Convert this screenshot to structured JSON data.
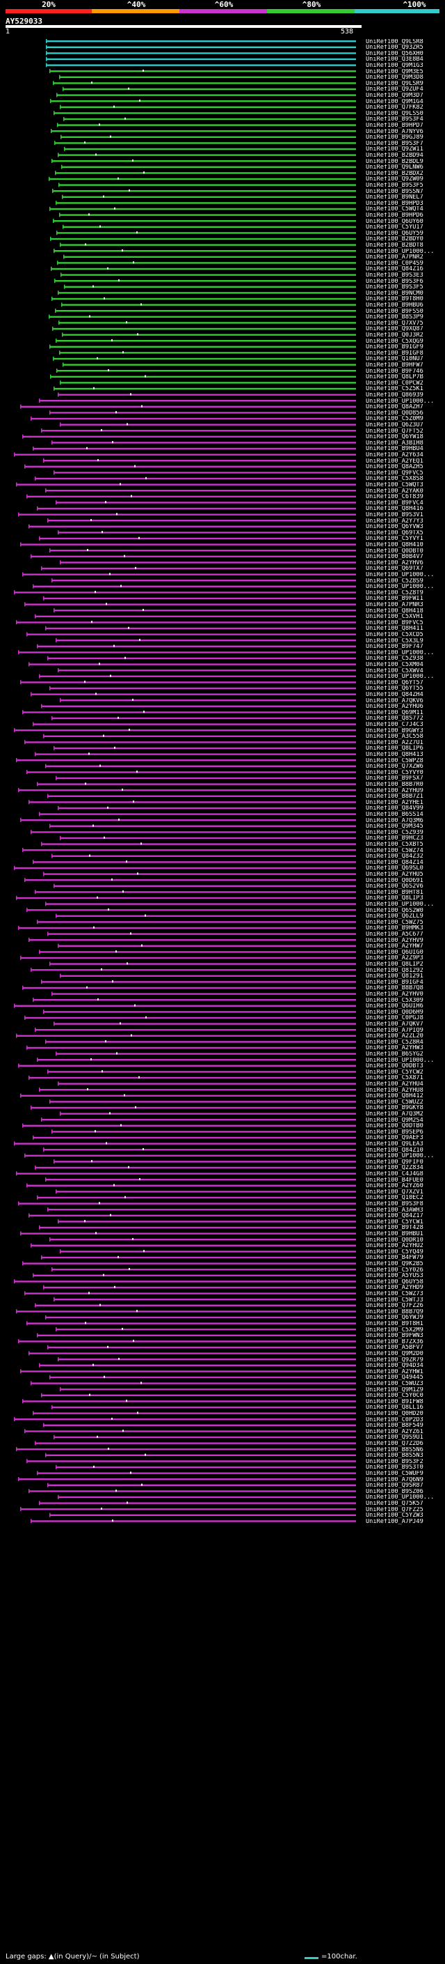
{
  "colors": {
    "red": "#ff2020",
    "orange": "#ff9900",
    "purple": "#cc33cc",
    "green": "#33cc33",
    "cyan": "#33cccc",
    "black": "#000000",
    "white": "#ffffff"
  },
  "scale": {
    "labels": [
      "20%",
      "^40%",
      "^60%",
      "^80%",
      "^100%"
    ],
    "segments": [
      "red",
      "orange",
      "purple",
      "green",
      "cyan"
    ]
  },
  "query": {
    "title": "AY529033",
    "start": "1",
    "end": "538"
  },
  "legend": {
    "gaps_text": "Large gaps: ▲(in Query)/~ (in Subject)",
    "scale_text": "=100char."
  },
  "hits": [
    {
      "id": "UniRef100_Q9LSR8",
      "color": "cyan"
    },
    {
      "id": "UniRef100_Q93ZR5",
      "color": "cyan"
    },
    {
      "id": "UniRef100_Q56XH0",
      "color": "cyan"
    },
    {
      "id": "UniRef100_Q3E8B4",
      "color": "cyan"
    },
    {
      "id": "UniRef100_Q9M1G3",
      "color": "cyan"
    },
    {
      "id": "UniRef100_Q9M3E5",
      "color": "green"
    },
    {
      "id": "UniRef100_Q9M3D8",
      "color": "green"
    },
    {
      "id": "UniRef100_Q9LSR9",
      "color": "green"
    },
    {
      "id": "UniRef100_Q9ZUF4",
      "color": "green"
    },
    {
      "id": "UniRef100_Q9M3D7",
      "color": "green"
    },
    {
      "id": "UniRef100_Q9M1G4",
      "color": "green"
    },
    {
      "id": "UniRef100_Q7FK82",
      "color": "green"
    },
    {
      "id": "UniRef100_Q9LSS0",
      "color": "green"
    },
    {
      "id": "UniRef100_B9S3F4",
      "color": "green"
    },
    {
      "id": "UniRef100_B9HPD7",
      "color": "green"
    },
    {
      "id": "UniRef100_A7NYV6",
      "color": "green"
    },
    {
      "id": "UniRef100_B9GJ89",
      "color": "green"
    },
    {
      "id": "UniRef100_B9S3F7",
      "color": "green"
    },
    {
      "id": "UniRef100_Q9ZW11",
      "color": "green"
    },
    {
      "id": "UniRef100_B2BD94",
      "color": "green"
    },
    {
      "id": "UniRef100_B2BDL9",
      "color": "green"
    },
    {
      "id": "UniRef100_Q9LNW6",
      "color": "green"
    },
    {
      "id": "UniRef100_B2BDX2",
      "color": "green"
    },
    {
      "id": "UniRef100_Q9ZW09",
      "color": "green"
    },
    {
      "id": "UniRef100_B9S3F5",
      "color": "green"
    },
    {
      "id": "UniRef100_B9SSN7",
      "color": "green"
    },
    {
      "id": "UniRef100_B9NEL7",
      "color": "green"
    },
    {
      "id": "UniRef100_B9HPD3",
      "color": "green"
    },
    {
      "id": "UniRef100_C5WQT4",
      "color": "green"
    },
    {
      "id": "UniRef100_B9HPD6",
      "color": "green"
    },
    {
      "id": "UniRef100_Q6UY60",
      "color": "green"
    },
    {
      "id": "UniRef100_C5YU17",
      "color": "green"
    },
    {
      "id": "UniRef100_Q6UY59",
      "color": "green"
    },
    {
      "id": "UniRef100_B2BDY0",
      "color": "green"
    },
    {
      "id": "UniRef100_B2BDT8",
      "color": "green"
    },
    {
      "id": "UniRef100_UP1000...",
      "color": "green"
    },
    {
      "id": "UniRef100_A7PNR2",
      "color": "green"
    },
    {
      "id": "UniRef100_C0P4S9",
      "color": "green"
    },
    {
      "id": "UniRef100_Q84Z16",
      "color": "green"
    },
    {
      "id": "UniRef100_B9S3E3",
      "color": "green"
    },
    {
      "id": "UniRef100_B9S3F6",
      "color": "green"
    },
    {
      "id": "UniRef100_B9S3F5",
      "color": "green"
    },
    {
      "id": "UniRef100_B9NCM0",
      "color": "green"
    },
    {
      "id": "UniRef100_B9T8H0",
      "color": "green"
    },
    {
      "id": "UniRef100_B9HBU6",
      "color": "green"
    },
    {
      "id": "UniRef100_B9FSS0",
      "color": "green"
    },
    {
      "id": "UniRef100_B8S3P9",
      "color": "green"
    },
    {
      "id": "UniRef100_Q7XV75",
      "color": "green"
    },
    {
      "id": "UniRef100_Q9XQ87",
      "color": "green"
    },
    {
      "id": "UniRef100_Q0J3R2",
      "color": "green"
    },
    {
      "id": "UniRef100_C5XQG9",
      "color": "green"
    },
    {
      "id": "UniRef100_B9IGF9",
      "color": "green"
    },
    {
      "id": "UniRef100_B9IGF8",
      "color": "green"
    },
    {
      "id": "UniRef100_Q10NU7",
      "color": "green"
    },
    {
      "id": "UniRef100_B9HFW7",
      "color": "green"
    },
    {
      "id": "UniRef100_B9F746",
      "color": "green"
    },
    {
      "id": "UniRef100_Q8LP7B",
      "color": "green"
    },
    {
      "id": "UniRef100_C0PCW2",
      "color": "green"
    },
    {
      "id": "UniRef100_C5Z5K1",
      "color": "green"
    },
    {
      "id": "UniRef100_Q86939",
      "color": "purple"
    },
    {
      "id": "UniRef100_UP1000...",
      "color": "purple"
    },
    {
      "id": "UniRef100_Q8AZH7",
      "color": "purple"
    },
    {
      "id": "UniRef100_Q0D856",
      "color": "purple"
    },
    {
      "id": "UniRef100_C5Z0M9",
      "color": "purple"
    },
    {
      "id": "UniRef100_Q6Z3U7",
      "color": "purple"
    },
    {
      "id": "UniRef100_Q7FT52",
      "color": "purple"
    },
    {
      "id": "UniRef100_Q6YW18",
      "color": "purple"
    },
    {
      "id": "UniRef100_A3BIH8",
      "color": "purple"
    },
    {
      "id": "UniRef100_B9HBU4",
      "color": "purple"
    },
    {
      "id": "UniRef100_A2Y634",
      "color": "purple"
    },
    {
      "id": "UniRef100_A2YEQ1",
      "color": "purple"
    },
    {
      "id": "UniRef100_Q8AZH5",
      "color": "purple"
    },
    {
      "id": "UniRef100_Q9FVC5",
      "color": "purple"
    },
    {
      "id": "UniRef100_C5X8S8",
      "color": "purple"
    },
    {
      "id": "UniRef100_C5WQT3",
      "color": "purple"
    },
    {
      "id": "UniRef100_A2YAK0",
      "color": "purple"
    },
    {
      "id": "UniRef100_C6T839",
      "color": "purple"
    },
    {
      "id": "UniRef100_B9FVC4",
      "color": "purple"
    },
    {
      "id": "UniRef100_Q8H416",
      "color": "purple"
    },
    {
      "id": "UniRef100_B9S3V1",
      "color": "purple"
    },
    {
      "id": "UniRef100_A2Y7Y3",
      "color": "purple"
    },
    {
      "id": "UniRef100_Q6YVW3",
      "color": "purple"
    },
    {
      "id": "UniRef100_Q69TX5",
      "color": "purple"
    },
    {
      "id": "UniRef100_C5YVY1",
      "color": "purple"
    },
    {
      "id": "UniRef100_Q8H410",
      "color": "purple"
    },
    {
      "id": "UniRef100_Q0DBT0",
      "color": "purple"
    },
    {
      "id": "UniRef100_B0B4V7",
      "color": "purple"
    },
    {
      "id": "UniRef100_A2YHV6",
      "color": "purple"
    },
    {
      "id": "UniRef100_Q69TX7",
      "color": "purple"
    },
    {
      "id": "UniRef100_UP1000...",
      "color": "purple"
    },
    {
      "id": "UniRef100_C5Z8S9",
      "color": "purple"
    },
    {
      "id": "UniRef100_UP1000...",
      "color": "purple"
    },
    {
      "id": "UniRef100_C5Z8T9",
      "color": "purple"
    },
    {
      "id": "UniRef100_B9FWI1",
      "color": "purple"
    },
    {
      "id": "UniRef100_A7PNR3",
      "color": "purple"
    },
    {
      "id": "UniRef100_Q8H418",
      "color": "purple"
    },
    {
      "id": "UniRef100_C5XVH1",
      "color": "purple"
    },
    {
      "id": "UniRef100_B9FVC5",
      "color": "purple"
    },
    {
      "id": "UniRef100_Q8H411",
      "color": "purple"
    },
    {
      "id": "UniRef100_C5XCD5",
      "color": "purple"
    },
    {
      "id": "UniRef100_C5X3L9",
      "color": "purple"
    },
    {
      "id": "UniRef100_B9F747",
      "color": "purple"
    },
    {
      "id": "UniRef100_UP1000...",
      "color": "purple"
    },
    {
      "id": "UniRef100_C5Z938",
      "color": "purple"
    },
    {
      "id": "UniRef100_C5XM04",
      "color": "purple"
    },
    {
      "id": "UniRef100_C5XWV4",
      "color": "purple"
    },
    {
      "id": "UniRef100_UP1000...",
      "color": "purple"
    },
    {
      "id": "UniRef100_Q6YT57",
      "color": "purple"
    },
    {
      "id": "UniRef100_Q6YT55",
      "color": "purple"
    },
    {
      "id": "UniRef100_Q84ZH4",
      "color": "purple"
    },
    {
      "id": "UniRef100_A7QKV6",
      "color": "purple"
    },
    {
      "id": "UniRef100_A2YHU6",
      "color": "purple"
    },
    {
      "id": "UniRef100_Q69M11",
      "color": "purple"
    },
    {
      "id": "UniRef100_Q8S772",
      "color": "purple"
    },
    {
      "id": "UniRef100_C7J4C3",
      "color": "purple"
    },
    {
      "id": "UniRef100_B9GWY3",
      "color": "purple"
    },
    {
      "id": "UniRef100_A3C558",
      "color": "purple"
    },
    {
      "id": "UniRef100_A2Z7U1",
      "color": "purple"
    },
    {
      "id": "UniRef100_Q8LIP6",
      "color": "purple"
    },
    {
      "id": "UniRef100_Q8H413",
      "color": "purple"
    },
    {
      "id": "UniRef100_C5WPZ8",
      "color": "purple"
    },
    {
      "id": "UniRef100_Q7XZW6",
      "color": "purple"
    },
    {
      "id": "UniRef100_C5YVY0",
      "color": "purple"
    },
    {
      "id": "UniRef100_B9FSX7",
      "color": "purple"
    },
    {
      "id": "UniRef100_B8B7R0",
      "color": "purple"
    },
    {
      "id": "UniRef100_A2YHU9",
      "color": "purple"
    },
    {
      "id": "UniRef100_B8B7Z1",
      "color": "purple"
    },
    {
      "id": "UniRef100_A2YHE1",
      "color": "purple"
    },
    {
      "id": "UniRef100_Q84V99",
      "color": "purple"
    },
    {
      "id": "UniRef100_B6SS14",
      "color": "purple"
    },
    {
      "id": "UniRef100_A7Q3M6",
      "color": "purple"
    },
    {
      "id": "UniRef100_Q9M345",
      "color": "purple"
    },
    {
      "id": "UniRef100_C5Z939",
      "color": "purple"
    },
    {
      "id": "UniRef100_B9HCZ3",
      "color": "purple"
    },
    {
      "id": "UniRef100_C5XBT5",
      "color": "purple"
    },
    {
      "id": "UniRef100_C5WZ74",
      "color": "purple"
    },
    {
      "id": "UniRef100_Q84Z32",
      "color": "purple"
    },
    {
      "id": "UniRef100_Q84Z14",
      "color": "purple"
    },
    {
      "id": "UniRef100_Q69SL0",
      "color": "purple"
    },
    {
      "id": "UniRef100_A2YHU5",
      "color": "purple"
    },
    {
      "id": "UniRef100_Q0D691",
      "color": "purple"
    },
    {
      "id": "UniRef100_Q6S2V6",
      "color": "purple"
    },
    {
      "id": "UniRef100_B9HT81",
      "color": "purple"
    },
    {
      "id": "UniRef100_Q8LIP3",
      "color": "purple"
    },
    {
      "id": "UniRef100_UP1000...",
      "color": "purple"
    },
    {
      "id": "UniRef100_Q6S2W0",
      "color": "purple"
    },
    {
      "id": "UniRef100_Q6ZLL9",
      "color": "purple"
    },
    {
      "id": "UniRef100_C5WZ75",
      "color": "purple"
    },
    {
      "id": "UniRef100_B9HMK3",
      "color": "purple"
    },
    {
      "id": "UniRef100_A5C677",
      "color": "purple"
    },
    {
      "id": "UniRef100_A2YHV9",
      "color": "purple"
    },
    {
      "id": "UniRef100_A2YHW7",
      "color": "purple"
    },
    {
      "id": "UniRef100_Q6UIG0",
      "color": "purple"
    },
    {
      "id": "UniRef100_A2Z9P3",
      "color": "purple"
    },
    {
      "id": "UniRef100_Q8LIP2",
      "color": "purple"
    },
    {
      "id": "UniRef100_Q81292",
      "color": "purple"
    },
    {
      "id": "UniRef100_Q81291",
      "color": "purple"
    },
    {
      "id": "UniRef100_B9IGF4",
      "color": "purple"
    },
    {
      "id": "UniRef100_B8B7Q8",
      "color": "purple"
    },
    {
      "id": "UniRef100_A2YHV0",
      "color": "purple"
    },
    {
      "id": "UniRef100_C5X309",
      "color": "purple"
    },
    {
      "id": "UniRef100_Q6UIH6",
      "color": "purple"
    },
    {
      "id": "UniRef100_Q0D6H9",
      "color": "purple"
    },
    {
      "id": "UniRef100_C0PGJ8",
      "color": "purple"
    },
    {
      "id": "UniRef100_A7QKV7",
      "color": "purple"
    },
    {
      "id": "UniRef100_A7PIQ9",
      "color": "purple"
    },
    {
      "id": "UniRef100_A2ZL20",
      "color": "purple"
    },
    {
      "id": "UniRef100_C5Z8R4",
      "color": "purple"
    },
    {
      "id": "UniRef100_A2YHW3",
      "color": "purple"
    },
    {
      "id": "UniRef100_B6SYG2",
      "color": "purple"
    },
    {
      "id": "UniRef100_UP1000...",
      "color": "purple"
    },
    {
      "id": "UniRef100_Q0DBT3",
      "color": "purple"
    },
    {
      "id": "UniRef100_C5YCW2",
      "color": "purple"
    },
    {
      "id": "UniRef100_C5X871",
      "color": "purple"
    },
    {
      "id": "UniRef100_A2YHU4",
      "color": "purple"
    },
    {
      "id": "UniRef100_A2YHU8",
      "color": "purple"
    },
    {
      "id": "UniRef100_Q8H412",
      "color": "purple"
    },
    {
      "id": "UniRef100_C5WUZ2",
      "color": "purple"
    },
    {
      "id": "UniRef100_B9GKY8",
      "color": "purple"
    },
    {
      "id": "UniRef100_A7Q3M2",
      "color": "purple"
    },
    {
      "id": "UniRef100_Q9M2S4",
      "color": "purple"
    },
    {
      "id": "UniRef100_Q0DTB0",
      "color": "purple"
    },
    {
      "id": "UniRef100_B9SEP6",
      "color": "purple"
    },
    {
      "id": "UniRef100_Q9AEF3",
      "color": "purple"
    },
    {
      "id": "UniRef100_Q9LEA3",
      "color": "purple"
    },
    {
      "id": "UniRef100_Q84Z10",
      "color": "purple"
    },
    {
      "id": "UniRef100_UP1000...",
      "color": "purple"
    },
    {
      "id": "UniRef100_Q9FIF0",
      "color": "purple"
    },
    {
      "id": "UniRef100_Q2Z834",
      "color": "purple"
    },
    {
      "id": "UniRef100_C4J4G8",
      "color": "purple"
    },
    {
      "id": "UniRef100_B4FUE0",
      "color": "purple"
    },
    {
      "id": "UniRef100_A2YZ60",
      "color": "purple"
    },
    {
      "id": "UniRef100_Q7XZV1",
      "color": "purple"
    },
    {
      "id": "UniRef100_Q10EC2",
      "color": "purple"
    },
    {
      "id": "UniRef100_B9S3F8",
      "color": "purple"
    },
    {
      "id": "UniRef100_A3AWH3",
      "color": "purple"
    },
    {
      "id": "UniRef100_Q84Z17",
      "color": "purple"
    },
    {
      "id": "UniRef100_C5YCW1",
      "color": "purple"
    },
    {
      "id": "UniRef100_B9T428",
      "color": "purple"
    },
    {
      "id": "UniRef100_B9HBU1",
      "color": "purple"
    },
    {
      "id": "UniRef100_Q0DR10",
      "color": "purple"
    },
    {
      "id": "UniRef100_A2YHU2",
      "color": "purple"
    },
    {
      "id": "UniRef100_C5YQ49",
      "color": "purple"
    },
    {
      "id": "UniRef100_B4FW79",
      "color": "purple"
    },
    {
      "id": "UniRef100_Q9K2B5",
      "color": "purple"
    },
    {
      "id": "UniRef100_C5Y026",
      "color": "purple"
    },
    {
      "id": "UniRef100_A5YUS3",
      "color": "purple"
    },
    {
      "id": "UniRef100_Q6UY58",
      "color": "purple"
    },
    {
      "id": "UniRef100_A2YHD9",
      "color": "purple"
    },
    {
      "id": "UniRef100_C5WZ73",
      "color": "purple"
    },
    {
      "id": "UniRef100_C5WTJ3",
      "color": "purple"
    },
    {
      "id": "UniRef100_Q7FZ26",
      "color": "purple"
    },
    {
      "id": "UniRef100_B8B7Q9",
      "color": "purple"
    },
    {
      "id": "UniRef100_Q6YWJ9",
      "color": "purple"
    },
    {
      "id": "UniRef100_B9T8H1",
      "color": "purple"
    },
    {
      "id": "UniRef100_C5X2M9",
      "color": "purple"
    },
    {
      "id": "UniRef100_B9FWN3",
      "color": "purple"
    },
    {
      "id": "UniRef100_B7ZX36",
      "color": "purple"
    },
    {
      "id": "UniRef100_A5BFV7",
      "color": "purple"
    },
    {
      "id": "UniRef100_Q9M2D0",
      "color": "purple"
    },
    {
      "id": "UniRef100_Q9ZR79",
      "color": "purple"
    },
    {
      "id": "UniRef100_Q94D34",
      "color": "purple"
    },
    {
      "id": "UniRef100_A2YHW1",
      "color": "purple"
    },
    {
      "id": "UniRef100_Q49445",
      "color": "purple"
    },
    {
      "id": "UniRef100_C5WUZ3",
      "color": "purple"
    },
    {
      "id": "UniRef100_Q9M1Z9",
      "color": "purple"
    },
    {
      "id": "UniRef100_C5Y0C0",
      "color": "purple"
    },
    {
      "id": "UniRef100_B9IFW8",
      "color": "purple"
    },
    {
      "id": "UniRef100_Q8LL16",
      "color": "purple"
    },
    {
      "id": "UniRef100_Q0HD20",
      "color": "purple"
    },
    {
      "id": "UniRef100_C0P2D3",
      "color": "purple"
    },
    {
      "id": "UniRef100_B8F549",
      "color": "purple"
    },
    {
      "id": "UniRef100_A2YZ61",
      "color": "purple"
    },
    {
      "id": "UniRef100_Q9S9U1",
      "color": "purple"
    },
    {
      "id": "UniRef100_Q7Z2D6",
      "color": "purple"
    },
    {
      "id": "UniRef100_B8S5N6",
      "color": "purple"
    },
    {
      "id": "UniRef100_B8S5N3",
      "color": "purple"
    },
    {
      "id": "UniRef100_B9S3F2",
      "color": "purple"
    },
    {
      "id": "UniRef100_B9S3T0",
      "color": "purple"
    },
    {
      "id": "UniRef100_C5WUF9",
      "color": "purple"
    },
    {
      "id": "UniRef100_A7Q6N9",
      "color": "purple"
    },
    {
      "id": "UniRef100_Q9SR87",
      "color": "purple"
    },
    {
      "id": "UniRef100_B9SZ06",
      "color": "purple"
    },
    {
      "id": "UniRef100_UP1000...",
      "color": "purple"
    },
    {
      "id": "UniRef100_Q75K57",
      "color": "purple"
    },
    {
      "id": "UniRef100_Q7FZ25",
      "color": "purple"
    },
    {
      "id": "UniRef100_C5YZW3",
      "color": "purple"
    },
    {
      "id": "UniRef100_A7PJ49",
      "color": "purple"
    }
  ]
}
